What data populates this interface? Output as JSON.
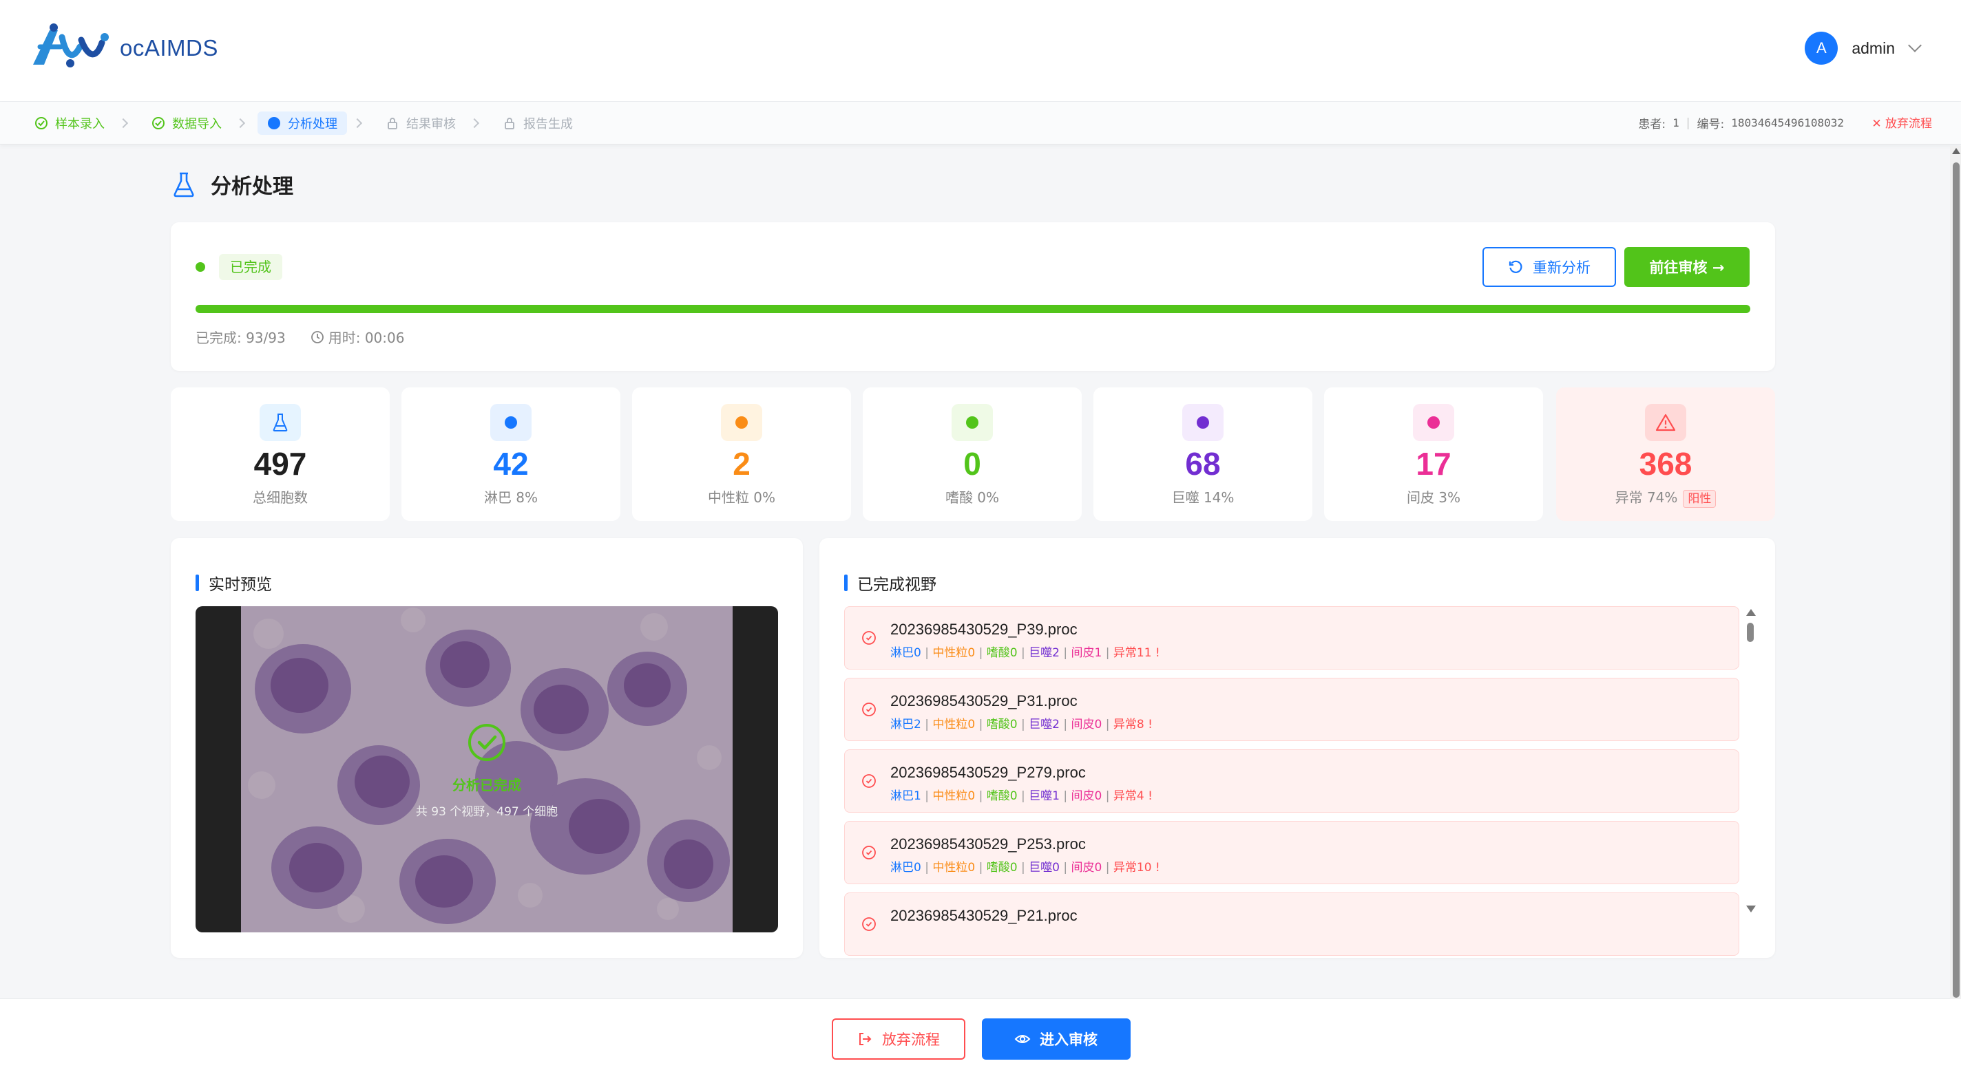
{
  "app": {
    "logo_text": "ocAIMDS"
  },
  "user": {
    "avatar_letter": "A",
    "name": "admin"
  },
  "steps": [
    {
      "label": "样本录入",
      "state": "done"
    },
    {
      "label": "数据导入",
      "state": "done"
    },
    {
      "label": "分析处理",
      "state": "active"
    },
    {
      "label": "结果审核",
      "state": "locked"
    },
    {
      "label": "报告生成",
      "state": "locked"
    }
  ],
  "patient": {
    "patient_label": "患者:",
    "patient_value": "1",
    "code_label": "编号:",
    "code_value": "18034645496108032",
    "abort_label": "✕ 放弃流程"
  },
  "page": {
    "title": "分析处理"
  },
  "status": {
    "tag": "已完成",
    "reanalyze_label": "重新分析",
    "goto_review_label": "前往审核 →",
    "progress_percent": 100,
    "completed_text": "已完成: 93/93",
    "elapsed_text": "用时: 00:06"
  },
  "stats": [
    {
      "value": "497",
      "label": "总细胞数",
      "color": "#1f1f1f",
      "icon_bg": "#e6f4ff",
      "dot": "flask"
    },
    {
      "value": "42",
      "label": "淋巴 8%",
      "color": "#1677ff",
      "icon_bg": "#e6f1ff",
      "dot": "#1677ff"
    },
    {
      "value": "2",
      "label": "中性粒 0%",
      "color": "#fa8c16",
      "icon_bg": "#fff3e0",
      "dot": "#fa8c16"
    },
    {
      "value": "0",
      "label": "嗜酸 0%",
      "color": "#52c41a",
      "icon_bg": "#effae6",
      "dot": "#52c41a"
    },
    {
      "value": "68",
      "label": "巨噬 14%",
      "color": "#722ed1",
      "icon_bg": "#f4ebfd",
      "dot": "#722ed1"
    },
    {
      "value": "17",
      "label": "间皮 3%",
      "color": "#eb2f96",
      "icon_bg": "#fdeaf4",
      "dot": "#eb2f96"
    },
    {
      "value": "368",
      "label": "异常 74%",
      "color": "#ff4d4f",
      "icon_bg": "#ffd9d8",
      "dot": "warning",
      "tag": "阳性"
    }
  ],
  "preview": {
    "title": "实时预览",
    "done_text": "分析已完成",
    "done_sub": "共 93 个视野，497 个细胞"
  },
  "fields": {
    "title": "已完成视野",
    "items": [
      {
        "name": "20236985430529_P39.proc",
        "lym": "淋巴0",
        "neu": "中性粒0",
        "eos": "嗜酸0",
        "mac": "巨噬2",
        "mes": "间皮1",
        "abn": "异常11 !"
      },
      {
        "name": "20236985430529_P31.proc",
        "lym": "淋巴2",
        "neu": "中性粒0",
        "eos": "嗜酸0",
        "mac": "巨噬2",
        "mes": "间皮0",
        "abn": "异常8 !"
      },
      {
        "name": "20236985430529_P279.proc",
        "lym": "淋巴1",
        "neu": "中性粒0",
        "eos": "嗜酸0",
        "mac": "巨噬1",
        "mes": "间皮0",
        "abn": "异常4 !"
      },
      {
        "name": "20236985430529_P253.proc",
        "lym": "淋巴0",
        "neu": "中性粒0",
        "eos": "嗜酸0",
        "mac": "巨噬0",
        "mes": "间皮0",
        "abn": "异常10 !"
      },
      {
        "name": "20236985430529_P21.proc",
        "lym": "",
        "neu": "",
        "eos": "",
        "mac": "",
        "mes": "",
        "abn": ""
      }
    ]
  },
  "footer": {
    "abort_label": "放弃流程",
    "enter_review_label": "进入审核"
  }
}
